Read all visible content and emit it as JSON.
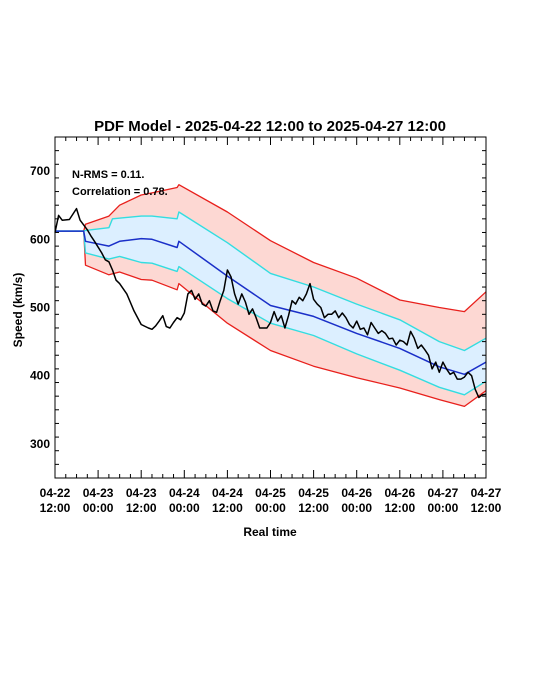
{
  "chart_data": {
    "type": "line",
    "title": "PDF Model - 2025-04-22 12:00 to 2025-04-27 12:00",
    "xlabel": "Real time",
    "ylabel": "Speed (km/s)",
    "xlim": [
      "2025-04-22T12:00",
      "2025-04-27T12:00"
    ],
    "ylim": [
      250,
      750
    ],
    "x_ticks": [
      {
        "x": "2025-04-22T12:00",
        "line1": "04-22",
        "line2": "12:00"
      },
      {
        "x": "2025-04-23T00:00",
        "line1": "04-23",
        "line2": "00:00"
      },
      {
        "x": "2025-04-23T12:00",
        "line1": "04-23",
        "line2": "12:00"
      },
      {
        "x": "2025-04-24T00:00",
        "line1": "04-24",
        "line2": "00:00"
      },
      {
        "x": "2025-04-24T12:00",
        "line1": "04-24",
        "line2": "12:00"
      },
      {
        "x": "2025-04-25T00:00",
        "line1": "04-25",
        "line2": "00:00"
      },
      {
        "x": "2025-04-25T12:00",
        "line1": "04-25",
        "line2": "12:00"
      },
      {
        "x": "2025-04-26T00:00",
        "line1": "04-26",
        "line2": "00:00"
      },
      {
        "x": "2025-04-26T12:00",
        "line1": "04-26",
        "line2": "12:00"
      },
      {
        "x": "2025-04-27T00:00",
        "line1": "04-27",
        "line2": "00:00"
      },
      {
        "x": "2025-04-27T12:00",
        "line1": "04-27",
        "line2": "12:00"
      }
    ],
    "y_ticks": [
      300,
      400,
      500,
      600,
      700
    ],
    "annotations": [
      "N-RMS = 0.11.",
      "Correlation = 0.78."
    ],
    "grid": false,
    "colors": {
      "observed": "#000000",
      "model": "#1a2fc8",
      "inner_band_line": "#33dde0",
      "inner_band_fill": "#dcefff",
      "outer_band_line": "#e8201c",
      "outer_band_fill": "#fdd8d3"
    },
    "series": [
      {
        "name": "model",
        "x": [
          "2025-04-22T12:00",
          "2025-04-22T20:00",
          "2025-04-22T20:30",
          "2025-04-23T03:00",
          "2025-04-23T06:00",
          "2025-04-23T12:00",
          "2025-04-23T15:00",
          "2025-04-23T22:00",
          "2025-04-23T22:30",
          "2025-04-24T12:00",
          "2025-04-25T00:00",
          "2025-04-25T12:00",
          "2025-04-26T00:00",
          "2025-04-26T12:00",
          "2025-04-26T23:00",
          "2025-04-27T06:00",
          "2025-04-27T12:00"
        ],
        "values": [
          612,
          612,
          597,
          590,
          597,
          601,
          600,
          588,
          597,
          546,
          503,
          487,
          462,
          440,
          413,
          402,
          420
        ]
      },
      {
        "name": "inner_upper",
        "x": [
          "2025-04-22T12:00",
          "2025-04-22T20:00",
          "2025-04-22T20:30",
          "2025-04-23T03:00",
          "2025-04-23T04:00",
          "2025-04-23T12:00",
          "2025-04-23T15:00",
          "2025-04-23T22:00",
          "2025-04-23T22:30",
          "2025-04-24T12:00",
          "2025-04-25T00:00",
          "2025-04-25T12:00",
          "2025-04-26T00:00",
          "2025-04-26T12:00",
          "2025-04-26T23:00",
          "2025-04-27T06:00",
          "2025-04-27T12:00"
        ],
        "values": [
          612,
          612,
          613,
          617,
          630,
          634,
          634,
          630,
          640,
          595,
          550,
          530,
          505,
          482,
          450,
          437,
          455
        ]
      },
      {
        "name": "inner_lower",
        "x": [
          "2025-04-22T12:00",
          "2025-04-22T20:00",
          "2025-04-22T20:30",
          "2025-04-23T03:00",
          "2025-04-23T06:00",
          "2025-04-23T12:00",
          "2025-04-23T15:00",
          "2025-04-23T22:00",
          "2025-04-23T22:30",
          "2025-04-24T12:00",
          "2025-04-25T00:00",
          "2025-04-25T12:00",
          "2025-04-26T00:00",
          "2025-04-26T12:00",
          "2025-04-26T23:00",
          "2025-04-27T06:00",
          "2025-04-27T12:00"
        ],
        "values": [
          612,
          612,
          580,
          571,
          575,
          566,
          565,
          553,
          560,
          513,
          477,
          459,
          432,
          408,
          383,
          372,
          392
        ]
      },
      {
        "name": "outer_upper",
        "x": [
          "2025-04-22T12:00",
          "2025-04-22T20:00",
          "2025-04-22T20:30",
          "2025-04-23T03:00",
          "2025-04-23T06:00",
          "2025-04-23T12:00",
          "2025-04-23T15:00",
          "2025-04-23T22:00",
          "2025-04-23T22:30",
          "2025-04-24T12:00",
          "2025-04-25T00:00",
          "2025-04-25T12:00",
          "2025-04-26T00:00",
          "2025-04-26T12:00",
          "2025-04-26T23:00",
          "2025-04-27T06:00",
          "2025-04-27T12:00"
        ],
        "values": [
          612,
          612,
          622,
          634,
          650,
          665,
          668,
          676,
          680,
          640,
          598,
          566,
          543,
          511,
          500,
          494,
          523
        ]
      },
      {
        "name": "outer_lower",
        "x": [
          "2025-04-22T12:00",
          "2025-04-22T20:00",
          "2025-04-22T20:30",
          "2025-04-23T03:00",
          "2025-04-23T06:00",
          "2025-04-23T12:00",
          "2025-04-23T15:00",
          "2025-04-23T22:00",
          "2025-04-23T22:30",
          "2025-04-24T12:00",
          "2025-04-25T00:00",
          "2025-04-25T12:00",
          "2025-04-26T00:00",
          "2025-04-26T12:00",
          "2025-04-26T23:00",
          "2025-04-27T06:00",
          "2025-04-27T12:00"
        ],
        "values": [
          612,
          612,
          562,
          548,
          552,
          541,
          540,
          526,
          535,
          477,
          437,
          414,
          397,
          382,
          365,
          355,
          378
        ]
      },
      {
        "name": "observed",
        "x": [
          "2025-04-22T12:00",
          "2025-04-22T13:00",
          "2025-04-22T14:00",
          "2025-04-22T16:00",
          "2025-04-22T18:00",
          "2025-04-22T19:00",
          "2025-04-22T21:00",
          "2025-04-22T22:00",
          "2025-04-22T23:00",
          "2025-04-23T01:00",
          "2025-04-23T02:00",
          "2025-04-23T03:00",
          "2025-04-23T04:00",
          "2025-04-23T05:00",
          "2025-04-23T06:00",
          "2025-04-23T08:00",
          "2025-04-23T10:00",
          "2025-04-23T12:00",
          "2025-04-23T14:00",
          "2025-04-23T15:00",
          "2025-04-23T16:00",
          "2025-04-23T17:00",
          "2025-04-23T18:00",
          "2025-04-23T19:00",
          "2025-04-23T20:00",
          "2025-04-23T21:00",
          "2025-04-23T22:00",
          "2025-04-23T23:00",
          "2025-04-24T00:00",
          "2025-04-24T01:00",
          "2025-04-24T02:00",
          "2025-04-24T03:00",
          "2025-04-24T04:00",
          "2025-04-24T05:00",
          "2025-04-24T06:00",
          "2025-04-24T07:00",
          "2025-04-24T08:00",
          "2025-04-24T09:00",
          "2025-04-24T10:00",
          "2025-04-24T11:00",
          "2025-04-24T12:00",
          "2025-04-24T13:00",
          "2025-04-24T14:00",
          "2025-04-24T15:00",
          "2025-04-24T16:00",
          "2025-04-24T17:00",
          "2025-04-24T18:00",
          "2025-04-24T19:00",
          "2025-04-24T20:00",
          "2025-04-24T21:00",
          "2025-04-24T22:00",
          "2025-04-24T23:00",
          "2025-04-25T00:00",
          "2025-04-25T01:00",
          "2025-04-25T02:00",
          "2025-04-25T03:00",
          "2025-04-25T04:00",
          "2025-04-25T05:00",
          "2025-04-25T06:00",
          "2025-04-25T07:00",
          "2025-04-25T08:00",
          "2025-04-25T09:00",
          "2025-04-25T10:00",
          "2025-04-25T11:00",
          "2025-04-25T12:00",
          "2025-04-25T13:00",
          "2025-04-25T14:00",
          "2025-04-25T15:00",
          "2025-04-25T16:00",
          "2025-04-25T17:00",
          "2025-04-25T18:00",
          "2025-04-25T19:00",
          "2025-04-25T20:00",
          "2025-04-25T21:00",
          "2025-04-25T22:00",
          "2025-04-25T23:00",
          "2025-04-26T00:00",
          "2025-04-26T01:00",
          "2025-04-26T02:00",
          "2025-04-26T03:00",
          "2025-04-26T04:00",
          "2025-04-26T05:00",
          "2025-04-26T06:00",
          "2025-04-26T07:00",
          "2025-04-26T08:00",
          "2025-04-26T09:00",
          "2025-04-26T10:00",
          "2025-04-26T11:00",
          "2025-04-26T12:00",
          "2025-04-26T13:00",
          "2025-04-26T14:00",
          "2025-04-26T15:00",
          "2025-04-26T16:00",
          "2025-04-26T17:00",
          "2025-04-26T18:00",
          "2025-04-26T19:00",
          "2025-04-26T20:00",
          "2025-04-26T21:00",
          "2025-04-26T22:00",
          "2025-04-26T23:00",
          "2025-04-27T00:00",
          "2025-04-27T01:00",
          "2025-04-27T02:00",
          "2025-04-27T03:00",
          "2025-04-27T04:00",
          "2025-04-27T05:00",
          "2025-04-27T06:00",
          "2025-04-27T07:00",
          "2025-04-27T08:00",
          "2025-04-27T09:00",
          "2025-04-27T10:00",
          "2025-04-27T11:00",
          "2025-04-27T12:00"
        ],
        "values": [
          610,
          635,
          628,
          629,
          645,
          628,
          614,
          605,
          597,
          580,
          570,
          567,
          555,
          540,
          535,
          520,
          495,
          475,
          470,
          468,
          473,
          480,
          488,
          472,
          470,
          478,
          485,
          482,
          492,
          520,
          525,
          512,
          520,
          505,
          502,
          510,
          495,
          493,
          510,
          525,
          555,
          545,
          520,
          505,
          520,
          508,
          490,
          498,
          485,
          470,
          470,
          470,
          478,
          494,
          480,
          488,
          470,
          488,
          510,
          505,
          515,
          510,
          520,
          535,
          512,
          505,
          500,
          485,
          490,
          490,
          495,
          485,
          492,
          485,
          475,
          470,
          480,
          468,
          470,
          460,
          478,
          470,
          462,
          466,
          462,
          454,
          455,
          445,
          452,
          450,
          445,
          465,
          455,
          440,
          445,
          438,
          430,
          410,
          420,
          405,
          420,
          410,
          402,
          405,
          395,
          395,
          398,
          405,
          400,
          380,
          368,
          372,
          373
        ]
      }
    ]
  }
}
